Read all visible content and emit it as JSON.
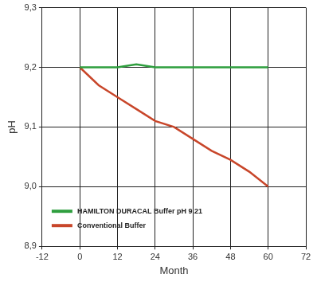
{
  "chart_data": {
    "type": "line",
    "x_label": "Month",
    "y_label": "pH",
    "x": [
      0,
      6,
      12,
      18,
      24,
      30,
      36,
      42,
      48,
      54,
      60
    ],
    "series": [
      {
        "name": "HAMILTON DURACAL Buffer pH 9.21",
        "color": "#2e9e3e",
        "values": [
          9.2,
          9.2,
          9.2,
          9.205,
          9.2,
          9.2,
          9.2,
          9.2,
          9.2,
          9.2,
          9.2
        ]
      },
      {
        "name": "Conventional Buffer",
        "color": "#c8462a",
        "values": [
          9.2,
          9.17,
          9.15,
          9.13,
          9.11,
          9.1,
          9.08,
          9.06,
          9.045,
          9.025,
          9.0
        ]
      }
    ],
    "xlim": [
      -12,
      72
    ],
    "xticks": [
      -12,
      0,
      12,
      24,
      36,
      48,
      60,
      72
    ],
    "ylim": [
      8.9,
      9.3
    ],
    "yticks": [
      {
        "value": 8.9,
        "label": "8,9"
      },
      {
        "value": 9.0,
        "label": "9,0"
      },
      {
        "value": 9.1,
        "label": "9,1"
      },
      {
        "value": 9.2,
        "label": "9,2"
      },
      {
        "value": 9.3,
        "label": "9,3"
      }
    ],
    "grid": true,
    "legend": "lower left"
  }
}
